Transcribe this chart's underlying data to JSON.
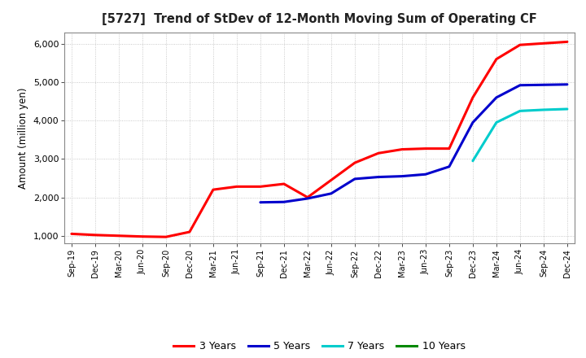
{
  "title": "[5727]  Trend of StDev of 12-Month Moving Sum of Operating CF",
  "ylabel": "Amount (million yen)",
  "background_color": "#ffffff",
  "grid_color": "#aaaaaa",
  "ylim": [
    800,
    6300
  ],
  "yticks": [
    1000,
    2000,
    3000,
    4000,
    5000,
    6000
  ],
  "series": {
    "3 Years": {
      "color": "#ff0000",
      "dates": [
        "Sep-19",
        "Dec-19",
        "Mar-20",
        "Jun-20",
        "Sep-20",
        "Dec-20",
        "Mar-21",
        "Jun-21",
        "Sep-21",
        "Dec-21",
        "Mar-22",
        "Jun-22",
        "Sep-22",
        "Dec-22",
        "Mar-23",
        "Jun-23",
        "Sep-23",
        "Dec-23",
        "Mar-24",
        "Jun-24",
        "Sep-24",
        "Dec-24"
      ],
      "values": [
        1050,
        1020,
        1000,
        980,
        970,
        1100,
        2200,
        2280,
        2280,
        2350,
        2000,
        2450,
        2900,
        3150,
        3250,
        3270,
        3270,
        4600,
        5600,
        5970,
        6010,
        6050
      ]
    },
    "5 Years": {
      "color": "#0000cc",
      "dates": [
        "Sep-21",
        "Dec-21",
        "Mar-22",
        "Jun-22",
        "Sep-22",
        "Dec-22",
        "Mar-23",
        "Jun-23",
        "Sep-23",
        "Dec-23",
        "Mar-24",
        "Jun-24",
        "Sep-24",
        "Dec-24"
      ],
      "values": [
        1870,
        1880,
        1970,
        2100,
        2480,
        2530,
        2550,
        2600,
        2800,
        3950,
        4600,
        4920,
        4930,
        4940
      ]
    },
    "7 Years": {
      "color": "#00cccc",
      "dates": [
        "Dec-23",
        "Mar-24",
        "Jun-24",
        "Sep-24",
        "Dec-24"
      ],
      "values": [
        2950,
        3950,
        4250,
        4280,
        4300
      ]
    },
    "10 Years": {
      "color": "#008800",
      "dates": [
        "Dec-24"
      ],
      "values": [
        4300
      ]
    }
  },
  "xtick_labels": [
    "Sep-19",
    "Dec-19",
    "Mar-20",
    "Jun-20",
    "Sep-20",
    "Dec-20",
    "Mar-21",
    "Jun-21",
    "Sep-21",
    "Dec-21",
    "Mar-22",
    "Jun-22",
    "Sep-22",
    "Dec-22",
    "Mar-23",
    "Jun-23",
    "Sep-23",
    "Dec-23",
    "Mar-24",
    "Jun-24",
    "Sep-24",
    "Dec-24"
  ],
  "legend_order": [
    "3 Years",
    "5 Years",
    "7 Years",
    "10 Years"
  ],
  "legend_colors": {
    "3 Years": "#ff0000",
    "5 Years": "#0000cc",
    "7 Years": "#00cccc",
    "10 Years": "#008800"
  }
}
